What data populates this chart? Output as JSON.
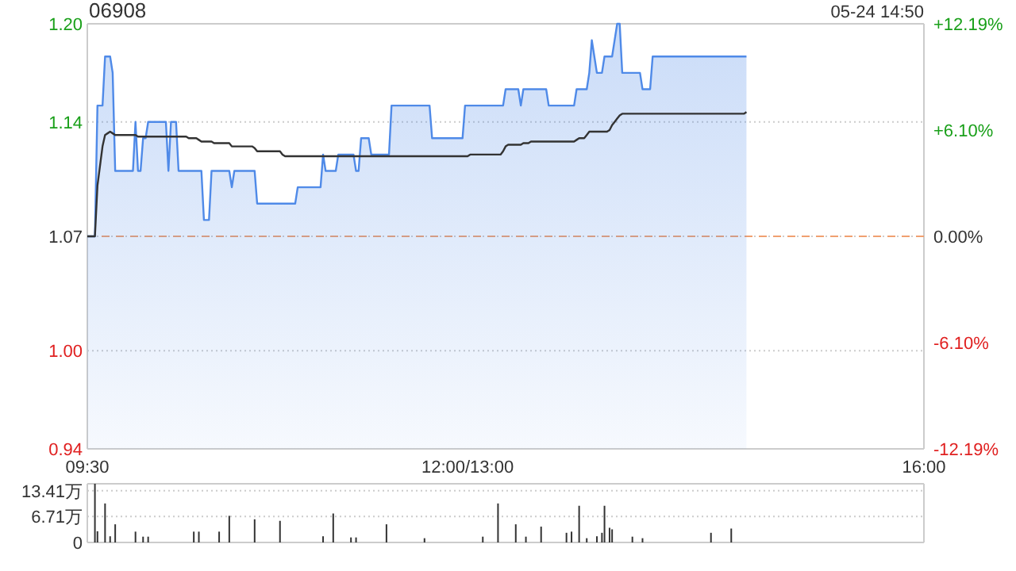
{
  "chart_data": [
    {
      "type": "area",
      "title": "06908",
      "annotations": [
        "05-24 14:50"
      ],
      "categories": [
        "09:30",
        null,
        null,
        null,
        null,
        null,
        null,
        null,
        null,
        null,
        null,
        null,
        null,
        null,
        null,
        null,
        null,
        null,
        null,
        null,
        null,
        null,
        null,
        null,
        null,
        null,
        null,
        null,
        null,
        null,
        null,
        null,
        null,
        null,
        null,
        null,
        null,
        null,
        null,
        null,
        null,
        null,
        null,
        null,
        null,
        null,
        null,
        null,
        null,
        null,
        null,
        null,
        null,
        null,
        null,
        null,
        null,
        null,
        null,
        null,
        null,
        null,
        null,
        null,
        null,
        null,
        null,
        null,
        null,
        null,
        null,
        null,
        null,
        null,
        null,
        null,
        null,
        null,
        null,
        null,
        null,
        null,
        null,
        null,
        null,
        null,
        null,
        null,
        null,
        null,
        null,
        null,
        null,
        null,
        null,
        null,
        null,
        null,
        null,
        null,
        null,
        null,
        null,
        null,
        null,
        null,
        null,
        null,
        null,
        null,
        null,
        null,
        null,
        null,
        null,
        null,
        null,
        null,
        null,
        null,
        null,
        null,
        null,
        null,
        null,
        null,
        null,
        null,
        null,
        null,
        null,
        null,
        null,
        null,
        null,
        null,
        null,
        null,
        null,
        null,
        null,
        null,
        null,
        null,
        null,
        null,
        null,
        null,
        null,
        null,
        "12:00/13:00",
        null,
        null,
        null,
        null,
        null,
        null,
        null,
        null,
        null,
        null,
        null,
        null,
        null,
        null,
        null,
        null,
        null,
        null,
        null,
        null,
        null,
        null,
        null,
        null,
        null,
        null,
        null,
        null,
        null,
        null,
        null,
        null,
        null,
        null,
        null,
        null,
        null,
        null,
        null,
        null,
        null,
        null,
        null,
        null,
        null,
        null,
        null,
        null,
        null,
        null,
        null,
        null,
        null,
        null,
        null,
        null,
        null,
        null,
        null,
        null,
        null,
        null,
        null,
        null,
        null,
        null,
        null,
        null,
        null,
        null,
        null,
        null,
        null,
        null,
        null,
        null,
        null,
        null,
        null,
        null,
        null,
        null,
        null,
        null,
        null,
        null,
        null,
        null,
        null,
        null,
        null,
        null,
        null,
        null,
        null,
        null,
        null,
        null,
        null,
        null,
        null,
        null,
        null,
        null,
        null,
        null,
        null,
        null,
        null,
        null,
        null,
        null,
        null,
        null,
        null,
        null,
        null,
        null,
        null,
        null,
        null,
        null,
        null,
        null,
        null,
        null,
        null,
        null,
        null,
        null,
        null,
        null,
        null,
        null,
        null,
        null,
        null,
        null,
        null,
        null,
        null,
        null,
        null,
        null,
        null,
        null,
        null,
        null,
        null,
        null,
        null,
        null,
        null,
        null,
        null,
        null,
        null,
        null,
        null,
        null,
        null,
        null,
        null,
        null,
        null,
        null,
        null,
        null,
        null,
        null,
        null,
        null,
        null,
        null,
        null,
        null,
        null,
        null,
        null,
        "16:00"
      ],
      "ylim": [
        0.94,
        1.2
      ],
      "yticks": [
        {
          "value": 0.94,
          "label": "0.94"
        },
        {
          "value": 1.0,
          "label": "1.00"
        },
        {
          "value": 1.07,
          "label": "1.07"
        },
        {
          "value": 1.14,
          "label": "1.14"
        },
        {
          "value": 1.2,
          "label": "1.20"
        }
      ],
      "y2lim": [
        -12.19,
        12.19
      ],
      "y2ticks": [
        {
          "value": -12.19,
          "label": "-12.19%"
        },
        {
          "value": -6.1,
          "label": "-6.10%"
        },
        {
          "value": 0,
          "label": "0.00%"
        },
        {
          "value": 6.1,
          "label": "+6.10%"
        },
        {
          "value": 12.19,
          "label": "+12.19%"
        }
      ],
      "ref_lines": [
        {
          "axis": "y",
          "value": 1.07,
          "color": "#f0a070",
          "line_style": "dashed"
        }
      ],
      "grid": "y",
      "series": [
        {
          "color": "#4f8ae8",
          "values": [
            1.07,
            1.07,
            1.07,
            1.07,
            1.15,
            1.15,
            1.15,
            1.18,
            1.18,
            1.18,
            1.17,
            1.11,
            1.11,
            1.11,
            1.11,
            1.11,
            1.11,
            1.11,
            1.11,
            1.14,
            1.11,
            1.11,
            1.13,
            1.13,
            1.14,
            1.14,
            1.14,
            1.14,
            1.14,
            1.14,
            1.14,
            1.14,
            1.11,
            1.14,
            1.14,
            1.14,
            1.11,
            1.11,
            1.11,
            1.11,
            1.11,
            1.11,
            1.11,
            1.11,
            1.11,
            1.11,
            1.08,
            1.08,
            1.08,
            1.11,
            1.11,
            1.11,
            1.11,
            1.11,
            1.11,
            1.11,
            1.11,
            1.1,
            1.11,
            1.11,
            1.11,
            1.11,
            1.11,
            1.11,
            1.11,
            1.11,
            1.11,
            1.09,
            1.09,
            1.09,
            1.09,
            1.09,
            1.09,
            1.09,
            1.09,
            1.09,
            1.09,
            1.09,
            1.09,
            1.09,
            1.09,
            1.09,
            1.09,
            1.1,
            1.1,
            1.1,
            1.1,
            1.1,
            1.1,
            1.1,
            1.1,
            1.1,
            1.1,
            1.12,
            1.11,
            1.11,
            1.11,
            1.11,
            1.11,
            1.12,
            1.12,
            1.12,
            1.12,
            1.12,
            1.12,
            1.12,
            1.11,
            1.11,
            1.13,
            1.13,
            1.13,
            1.13,
            1.12,
            1.12,
            1.12,
            1.12,
            1.12,
            1.12,
            1.12,
            1.12,
            1.15,
            1.15,
            1.15,
            1.15,
            1.15,
            1.15,
            1.15,
            1.15,
            1.15,
            1.15,
            1.15,
            1.15,
            1.15,
            1.15,
            1.15,
            1.15,
            1.13,
            1.13,
            1.13,
            1.13,
            1.13,
            1.13,
            1.13,
            1.13,
            1.13,
            1.13,
            1.13,
            1.13,
            1.13,
            1.15,
            1.15,
            1.15,
            1.15,
            1.15,
            1.15,
            1.15,
            1.15,
            1.15,
            1.15,
            1.15,
            1.15,
            1.15,
            1.15,
            1.15,
            1.15,
            1.16,
            1.16,
            1.16,
            1.16,
            1.16,
            1.16,
            1.15,
            1.16,
            1.16,
            1.16,
            1.16,
            1.16,
            1.16,
            1.16,
            1.16,
            1.16,
            1.16,
            1.15,
            1.15,
            1.15,
            1.15,
            1.15,
            1.15,
            1.15,
            1.15,
            1.15,
            1.15,
            1.15,
            1.16,
            1.16,
            1.16,
            1.16,
            1.16,
            1.17,
            1.19,
            1.18,
            1.17,
            1.17,
            1.17,
            1.18,
            1.18,
            1.18,
            1.18,
            1.19,
            1.2,
            1.2,
            1.17,
            1.17,
            1.17,
            1.17,
            1.17,
            1.17,
            1.17,
            1.17,
            1.16,
            1.16,
            1.16,
            1.16,
            1.18,
            1.18,
            1.18,
            1.18,
            1.18,
            1.18,
            1.18,
            1.18,
            1.18,
            1.18,
            1.18,
            1.18,
            1.18,
            1.18,
            1.18,
            1.18,
            1.18,
            1.18,
            1.18,
            1.18,
            1.18,
            1.18,
            1.18,
            1.18,
            1.18,
            1.18,
            1.18,
            1.18,
            1.18,
            1.18,
            1.18,
            1.18,
            1.18,
            1.18,
            1.18,
            1.18,
            1.18,
            1.18,
            null,
            null,
            null,
            null,
            null,
            null,
            null,
            null,
            null,
            null,
            null,
            null,
            null,
            null,
            null,
            null,
            null,
            null,
            null,
            null,
            null,
            null,
            null,
            null,
            null,
            null,
            null,
            null,
            null,
            null,
            null,
            null,
            null,
            null,
            null,
            null,
            null,
            null,
            null,
            null,
            null,
            null,
            null,
            null,
            null,
            null,
            null,
            null,
            null,
            null,
            null,
            null,
            null,
            null,
            null,
            null,
            null,
            null,
            null,
            null,
            null,
            null,
            null,
            null,
            null,
            null,
            null,
            null,
            null,
            null
          ]
        },
        {
          "type": "line",
          "color": "#333333",
          "values": [
            1.07,
            1.07,
            1.07,
            1.07,
            1.101,
            1.113,
            1.125,
            1.132,
            1.133,
            1.134,
            1.133,
            1.132,
            1.132,
            1.132,
            1.132,
            1.132,
            1.132,
            1.132,
            1.132,
            1.132,
            1.131,
            1.131,
            1.131,
            1.131,
            1.131,
            1.131,
            1.131,
            1.131,
            1.131,
            1.131,
            1.131,
            1.131,
            1.131,
            1.131,
            1.131,
            1.131,
            1.131,
            1.131,
            1.131,
            1.131,
            1.13,
            1.13,
            1.13,
            1.13,
            1.129,
            1.128,
            1.128,
            1.128,
            1.128,
            1.128,
            1.127,
            1.127,
            1.127,
            1.127,
            1.127,
            1.127,
            1.127,
            1.125,
            1.125,
            1.125,
            1.125,
            1.125,
            1.125,
            1.125,
            1.125,
            1.125,
            1.124,
            1.122,
            1.122,
            1.122,
            1.122,
            1.122,
            1.122,
            1.122,
            1.122,
            1.122,
            1.122,
            1.12,
            1.119,
            1.119,
            1.119,
            1.119,
            1.119,
            1.119,
            1.119,
            1.119,
            1.119,
            1.119,
            1.119,
            1.119,
            1.119,
            1.119,
            1.119,
            1.119,
            1.119,
            1.119,
            1.119,
            1.119,
            1.119,
            1.119,
            1.119,
            1.119,
            1.119,
            1.119,
            1.119,
            1.119,
            1.119,
            1.119,
            1.119,
            1.119,
            1.119,
            1.119,
            1.119,
            1.119,
            1.119,
            1.119,
            1.119,
            1.119,
            1.119,
            1.119,
            1.119,
            1.119,
            1.119,
            1.119,
            1.119,
            1.119,
            1.119,
            1.119,
            1.119,
            1.119,
            1.119,
            1.119,
            1.119,
            1.119,
            1.119,
            1.119,
            1.119,
            1.119,
            1.119,
            1.119,
            1.119,
            1.119,
            1.119,
            1.119,
            1.119,
            1.119,
            1.119,
            1.119,
            1.119,
            1.119,
            1.119,
            1.12,
            1.12,
            1.12,
            1.12,
            1.12,
            1.12,
            1.12,
            1.12,
            1.12,
            1.12,
            1.12,
            1.12,
            1.12,
            1.122,
            1.125,
            1.126,
            1.126,
            1.126,
            1.126,
            1.126,
            1.126,
            1.127,
            1.127,
            1.127,
            1.128,
            1.128,
            1.128,
            1.128,
            1.128,
            1.128,
            1.128,
            1.128,
            1.128,
            1.128,
            1.128,
            1.128,
            1.128,
            1.128,
            1.128,
            1.128,
            1.128,
            1.128,
            1.129,
            1.13,
            1.13,
            1.13,
            1.132,
            1.134,
            1.134,
            1.134,
            1.134,
            1.134,
            1.134,
            1.134,
            1.134,
            1.135,
            1.138,
            1.14,
            1.142,
            1.144,
            1.145,
            1.145,
            1.145,
            1.145,
            1.145,
            1.145,
            1.145,
            1.145,
            1.145,
            1.145,
            1.145,
            1.145,
            1.145,
            1.145,
            1.145,
            1.145,
            1.145,
            1.145,
            1.145,
            1.145,
            1.145,
            1.145,
            1.145,
            1.145,
            1.145,
            1.145,
            1.145,
            1.145,
            1.145,
            1.145,
            1.145,
            1.145,
            1.145,
            1.145,
            1.145,
            1.145,
            1.145,
            1.145,
            1.145,
            1.145,
            1.145,
            1.145,
            1.145,
            1.145,
            1.145,
            1.145,
            1.145,
            1.145,
            1.145,
            1.146,
            null,
            null,
            null,
            null,
            null,
            null,
            null,
            null,
            null,
            null,
            null,
            null,
            null,
            null,
            null,
            null,
            null,
            null,
            null,
            null,
            null,
            null,
            null,
            null,
            null,
            null,
            null,
            null,
            null,
            null,
            null,
            null,
            null,
            null,
            null,
            null,
            null,
            null,
            null,
            null,
            null,
            null,
            null,
            null,
            null,
            null,
            null,
            null,
            null,
            null,
            null,
            null,
            null,
            null,
            null,
            null,
            null,
            null,
            null,
            null,
            null,
            null,
            null,
            null,
            null,
            null,
            null,
            null,
            null,
            null
          ]
        }
      ]
    },
    {
      "type": "bar",
      "grid": "y",
      "categories": [
        null,
        null,
        null,
        null,
        null,
        null,
        null,
        null,
        null,
        null,
        null,
        null,
        null,
        null,
        null,
        null,
        null,
        null,
        null,
        null,
        null,
        null,
        null,
        null,
        null,
        null,
        null,
        null,
        null,
        null,
        null,
        null,
        null,
        null,
        null,
        null,
        null,
        null,
        null,
        null,
        null,
        null,
        null,
        null,
        null,
        null,
        null,
        null,
        null,
        null,
        null,
        null,
        null,
        null,
        null,
        null,
        null,
        null,
        null,
        null,
        null,
        null,
        null,
        null,
        null,
        null,
        null,
        null,
        null,
        null,
        null,
        null,
        null,
        null,
        null,
        null,
        null,
        null,
        null,
        null,
        null,
        null,
        null,
        null,
        null,
        null,
        null,
        null,
        null,
        null,
        null,
        null,
        null,
        null,
        null,
        null,
        null,
        null,
        null,
        null,
        null,
        null,
        null,
        null,
        null,
        null,
        null,
        null,
        null,
        null,
        null,
        null,
        null,
        null,
        null,
        null,
        null,
        null,
        null,
        null,
        null,
        null,
        null,
        null,
        null,
        null,
        null,
        null,
        null,
        null,
        null,
        null,
        null,
        null,
        null,
        null,
        null,
        null,
        null,
        null,
        null,
        null,
        null,
        null,
        null,
        null,
        null,
        null,
        null,
        null,
        null,
        null,
        null,
        null,
        null,
        null,
        null,
        null,
        null,
        null,
        null,
        null,
        null,
        null,
        null,
        null,
        null,
        null,
        null,
        null,
        null,
        null,
        null,
        null,
        null,
        null,
        null,
        null,
        null,
        null,
        null,
        null,
        null,
        null,
        null,
        null,
        null,
        null,
        null,
        null,
        null,
        null,
        null,
        null,
        null,
        null,
        null,
        null,
        null,
        null,
        null,
        null,
        null,
        null,
        null,
        null,
        null,
        null,
        null,
        null,
        null,
        null,
        null,
        null,
        null,
        null,
        null,
        null,
        null,
        null,
        null,
        null,
        null,
        null,
        null,
        null,
        null,
        null,
        null,
        null,
        null,
        null,
        null,
        null,
        null,
        null,
        null,
        null,
        null,
        null,
        null,
        null,
        null,
        null,
        null,
        null,
        null,
        null,
        null,
        null,
        null,
        null,
        null,
        null,
        null,
        null,
        null,
        null,
        null,
        null,
        null,
        null,
        null,
        null,
        null,
        null,
        null,
        null,
        null,
        null,
        null,
        null,
        null,
        null,
        null,
        null,
        null,
        null,
        null,
        null,
        null,
        null,
        null,
        null,
        null,
        null,
        null,
        null,
        null,
        null,
        null,
        null,
        null,
        null,
        null,
        null,
        null,
        null,
        null,
        null,
        null,
        null,
        null,
        null,
        null,
        null,
        null,
        null,
        null,
        null,
        null,
        null,
        null,
        null,
        null,
        null,
        null,
        null,
        null,
        null,
        null,
        null,
        null,
        null,
        null,
        null,
        null,
        null,
        null,
        null,
        null
      ],
      "ylim": [
        0,
        15.2
      ],
      "yticks": [
        {
          "value": 0,
          "label": "0"
        },
        {
          "value": 6.71,
          "label": "6.71万"
        },
        {
          "value": 13.41,
          "label": "13.41万"
        }
      ],
      "series": [
        {
          "color": "#333333",
          "values": [
            null,
            null,
            null,
            15.2,
            2.9,
            null,
            null,
            10.1,
            null,
            1.6,
            null,
            4.7,
            null,
            null,
            null,
            null,
            null,
            null,
            null,
            2.8,
            null,
            null,
            1.5,
            null,
            1.5,
            null,
            null,
            null,
            null,
            null,
            null,
            null,
            null,
            null,
            null,
            null,
            null,
            null,
            null,
            null,
            null,
            null,
            2.8,
            null,
            2.8,
            null,
            null,
            null,
            null,
            null,
            null,
            null,
            2.8,
            null,
            null,
            null,
            6.9,
            null,
            null,
            null,
            null,
            null,
            null,
            null,
            null,
            null,
            6.0,
            null,
            null,
            null,
            null,
            null,
            null,
            null,
            null,
            null,
            5.6,
            null,
            null,
            null,
            null,
            null,
            null,
            null,
            null,
            null,
            null,
            null,
            null,
            null,
            null,
            null,
            null,
            1.6,
            null,
            null,
            null,
            7.5,
            null,
            null,
            null,
            null,
            null,
            null,
            1.3,
            null,
            1.3,
            null,
            null,
            null,
            null,
            null,
            null,
            null,
            null,
            null,
            null,
            null,
            4.7,
            null,
            null,
            null,
            null,
            null,
            null,
            null,
            null,
            null,
            null,
            null,
            null,
            null,
            null,
            1.1,
            null,
            null,
            null,
            null,
            null,
            null,
            null,
            null,
            null,
            null,
            null,
            null,
            null,
            null,
            null,
            null,
            null,
            null,
            null,
            null,
            null,
            null,
            1.5,
            null,
            null,
            null,
            null,
            null,
            10.1,
            null,
            null,
            null,
            null,
            null,
            null,
            4.7,
            null,
            null,
            null,
            1.5,
            null,
            null,
            null,
            null,
            null,
            4.1,
            null,
            null,
            null,
            null,
            null,
            null,
            null,
            null,
            null,
            2.5,
            null,
            2.8,
            null,
            null,
            9.5,
            null,
            null,
            1.1,
            null,
            null,
            null,
            1.6,
            null,
            2.5,
            9.5,
            null,
            3.8,
            3.4,
            null,
            null,
            null,
            null,
            null,
            null,
            null,
            1.5,
            null,
            null,
            null,
            1.1,
            null,
            null,
            null,
            null,
            null,
            null,
            null,
            null,
            null,
            null,
            null,
            null,
            null,
            null,
            null,
            null,
            null,
            null,
            null,
            null,
            null,
            null,
            null,
            null,
            null,
            null,
            2.5,
            null,
            null,
            null,
            null,
            null,
            null,
            null,
            3.6,
            null,
            null,
            null,
            null,
            null,
            null,
            null,
            null,
            null,
            null,
            null,
            null,
            null,
            null,
            null,
            null,
            null,
            null,
            null,
            null,
            null,
            null,
            null,
            null,
            null,
            null,
            null,
            null,
            null,
            null,
            null,
            null,
            null,
            null,
            null,
            null,
            null,
            null,
            null,
            null,
            null,
            null,
            null,
            null,
            null,
            null,
            null,
            null,
            null,
            null,
            null,
            null,
            null,
            null,
            null,
            null,
            null,
            null,
            null,
            null,
            null,
            null,
            null,
            null,
            null,
            null,
            null,
            null,
            null,
            null,
            null,
            null,
            null,
            null,
            null,
            null
          ]
        }
      ]
    }
  ]
}
